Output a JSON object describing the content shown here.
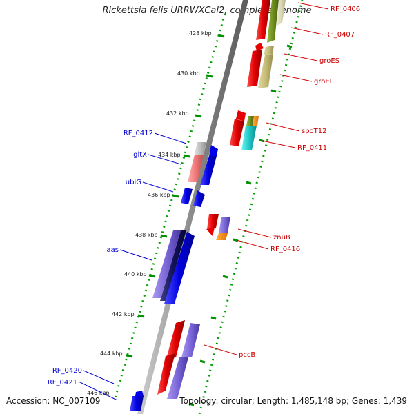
{
  "title": "Rickettsia felis URRWXCal2, complete genome",
  "footer": {
    "accession": "Accession: NC_007109",
    "summary": "Topology: circular; Length: 1,485,148 bp; Genes: 1,439"
  },
  "ticks": [
    "428 kbp",
    "430 kbp",
    "432 kbp",
    "434 kbp",
    "436 kbp",
    "438 kbp",
    "440 kbp",
    "442 kbp",
    "444 kbp",
    "446 kbp"
  ],
  "genes_right": [
    "RF_0406",
    "RF_0407",
    "groES",
    "groEL",
    "spoT12",
    "RF_0411",
    "znuB",
    "RF_0416",
    "pccB"
  ],
  "genes_left": [
    "RF_0412",
    "gltX",
    "ubiG",
    "aas",
    "RF_0420",
    "RF_0421"
  ],
  "colors": {
    "forward": "#e60000",
    "reverse": "#0000e6",
    "right_label": "#cc0000",
    "left_label": "#0000cc",
    "backbone": "#888888",
    "green_dots": "#008000"
  }
}
